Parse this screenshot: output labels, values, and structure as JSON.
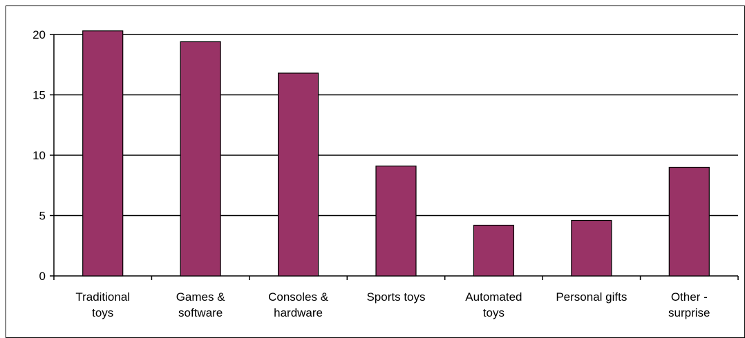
{
  "chart_data": {
    "type": "bar",
    "title": "",
    "xlabel": "",
    "ylabel": "",
    "categories": [
      [
        "Traditional",
        "toys"
      ],
      [
        "Games &",
        "software"
      ],
      [
        "Consoles &",
        "hardware"
      ],
      [
        "Sports toys"
      ],
      [
        "Automated",
        "toys"
      ],
      [
        "Personal gifts"
      ],
      [
        "Other -",
        "surprise"
      ]
    ],
    "values": [
      20.3,
      19.4,
      16.8,
      9.1,
      4.2,
      4.6,
      9.0
    ],
    "ylim": [
      0,
      20
    ],
    "yticks": [
      0,
      5,
      10,
      15,
      20
    ],
    "grid": true,
    "legend": "none",
    "bar_color": "#993366",
    "bar_outline": "#000000"
  }
}
